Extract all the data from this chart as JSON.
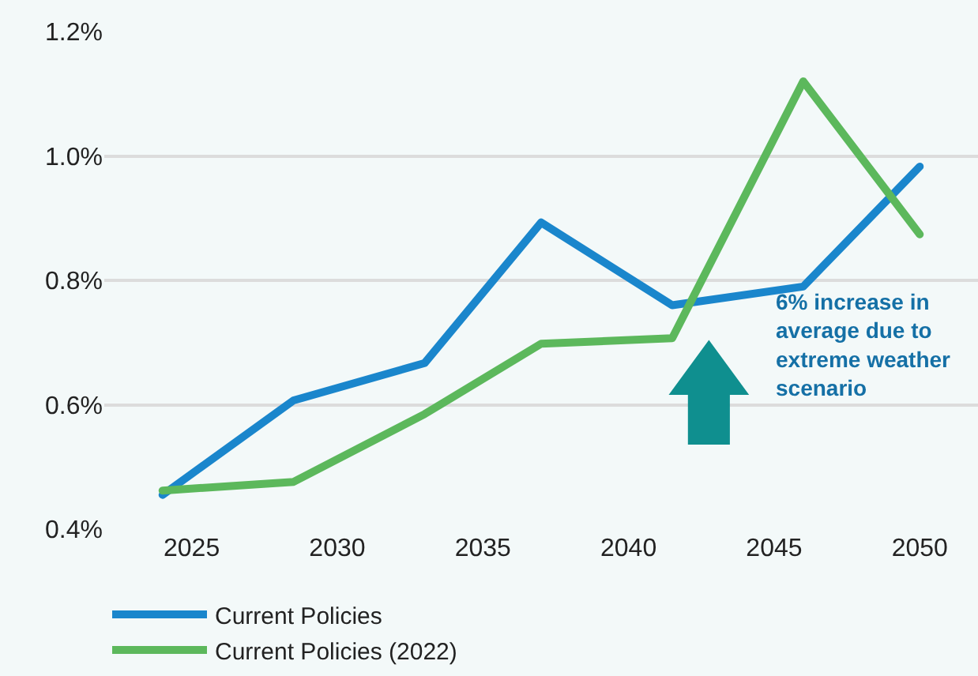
{
  "chart_data": {
    "type": "line",
    "x": [
      2024,
      2028.5,
      2033,
      2037,
      2041.5,
      2046,
      2050
    ],
    "series": [
      {
        "name": "Current Policies",
        "color": "#1a86cc",
        "values": [
          0.455,
          0.607,
          0.667,
          0.893,
          0.76,
          0.79,
          0.983
        ]
      },
      {
        "name": "Current Policies (2022)",
        "color": "#5cb85c",
        "values": [
          0.462,
          0.476,
          0.585,
          0.698,
          0.707,
          1.12,
          0.874
        ]
      }
    ],
    "xlim": [
      2022,
      2052
    ],
    "xticks": [
      2025,
      2030,
      2035,
      2040,
      2045,
      2050
    ],
    "ylim": [
      0.4,
      1.2
    ],
    "yticks": [
      {
        "value": 0.4,
        "label": "0.4%"
      },
      {
        "value": 0.6,
        "label": "0.6%"
      },
      {
        "value": 0.8,
        "label": "0.8%"
      },
      {
        "value": 1.0,
        "label": "1.0%"
      },
      {
        "value": 1.2,
        "label": "1.2%"
      }
    ],
    "annotations": [
      "6% increase in\naverage due to\nextreme weather\nscenario"
    ],
    "grid": "y",
    "legend": "bottom",
    "marker": "none",
    "line_style": "solid"
  }
}
